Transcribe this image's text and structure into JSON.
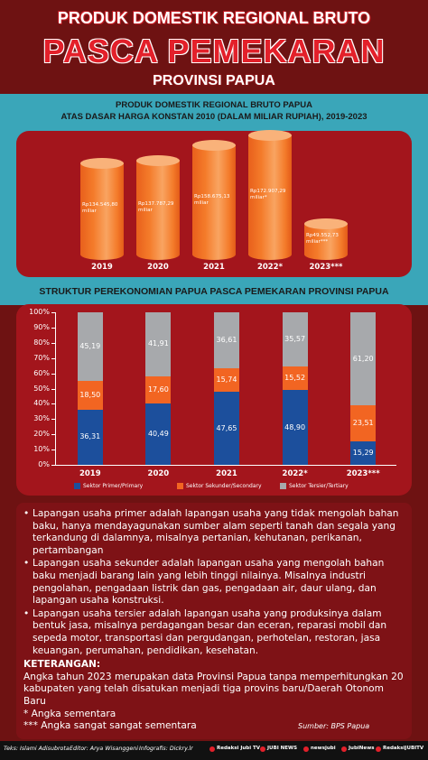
{
  "header": {
    "line1": "PRODUK DOMESTIK REGIONAL BRUTO",
    "line2": "PASCA PEMEKARAN",
    "line3": "PROVINSI PAPUA"
  },
  "chart_data": [
    {
      "type": "cylinder_bar",
      "title": "PRODUK DOMESTIK REGIONAL BRUTO PAPUA",
      "subtitle": "ATAS DASAR HARGA KONSTAN 2010 (DALAM MILIAR RUPIAH), 2019-2023",
      "categories": [
        "2019",
        "2020",
        "2021",
        "2022*",
        "2023***"
      ],
      "values": [
        134545.8,
        137787.29,
        158675.13,
        172907.29,
        49552.73
      ],
      "value_labels": [
        "Rp134.545,80 miliar",
        "Rp137.787,29 miliar",
        "Rp158.675,13 miliar",
        "Rp172.907,29 miliar*",
        "Rp49.552,73 miliar***"
      ],
      "color": "#f47b2a"
    },
    {
      "type": "stacked_bar",
      "title": "STRUKTUR PEREKONOMIAN PAPUA PASCA PEMEKARAN PROVINSI PAPUA",
      "categories": [
        "2019",
        "2020",
        "2021",
        "2022*",
        "2023***"
      ],
      "series": [
        {
          "name": "Sektor Primer/Primary",
          "color": "#1c4f9c",
          "values": [
            36.31,
            40.49,
            47.65,
            48.9,
            15.29
          ],
          "value_labels": [
            "36,31",
            "40,49",
            "47,65",
            "48,90",
            "15,29"
          ]
        },
        {
          "name": "Sektor Sekunder/Secondary",
          "color": "#f26522",
          "values": [
            18.5,
            17.6,
            15.74,
            15.52,
            23.51
          ],
          "value_labels": [
            "18,50",
            "17,60",
            "15,74",
            "15,52",
            "23,51"
          ]
        },
        {
          "name": "Sektor Tersier/Tertiary",
          "color": "#a7a9ac",
          "values": [
            45.19,
            41.91,
            36.61,
            35.57,
            61.2
          ],
          "value_labels": [
            "45,19",
            "41,91",
            "36,61",
            "35,57",
            "61,20"
          ]
        }
      ],
      "ylim": [
        0,
        100
      ],
      "yticks": [
        {
          "value": 0,
          "label": "0%"
        },
        {
          "value": 10,
          "label": "10%"
        },
        {
          "value": 20,
          "label": "20%"
        },
        {
          "value": 30,
          "label": "30%"
        },
        {
          "value": 40,
          "label": "40%"
        },
        {
          "value": 50,
          "label": "50%"
        },
        {
          "value": 60,
          "label": "60%"
        },
        {
          "value": 70,
          "label": "70%"
        },
        {
          "value": 80,
          "label": "80%"
        },
        {
          "value": 90,
          "label": "90%"
        },
        {
          "value": 100,
          "label": "100%"
        }
      ],
      "legend": "bottom"
    }
  ],
  "notes": {
    "bullets": [
      "Lapangan usaha primer adalah lapangan usaha yang tidak mengolah bahan baku, hanya mendayagunakan sumber alam seperti tanah dan segala yang terkandung di dalamnya, misalnya pertanian, kehutanan, perikanan, pertambangan",
      "Lapangan usaha sekunder adalah lapangan usaha yang mengolah bahan baku menjadi barang lain yang lebih tinggi nilainya. Misalnya industri pengolahan, pengadaan listrik dan gas, pengadaan air, daur ulang, dan lapangan usaha konstruksi.",
      "Lapangan usaha tersier adalah lapangan usaha yang produksinya dalam bentuk jasa, misalnya perdagangan besar dan eceran, reparasi mobil dan sepeda motor, transportasi dan pergudangan, perhotelan, restoran, jasa keuangan, perumahan, pendidikan, kesehatan."
    ],
    "keterangan_title": "KETERANGAN:",
    "keterangan": [
      "Angka tahun 2023 merupakan data Provinsi Papua tanpa memperhitungkan 20 kabupaten yang telah disatukan menjadi tiga provins baru/Daerah Otonom Baru",
      "* Angka sementara",
      "*** Angka sangat sangat sementara"
    ],
    "source": "Sumber: BPS Papua"
  },
  "footer": {
    "credits": [
      "Teks: Islami Adisubrota",
      "Editor: Arya Wisanggeni",
      "Infografis: Dickry.lr"
    ],
    "social": [
      "Redaksi Jubi TV",
      "JUBI NEWS",
      "newsjubi",
      "JubiNews",
      "RedaksiJUBITV"
    ]
  }
}
